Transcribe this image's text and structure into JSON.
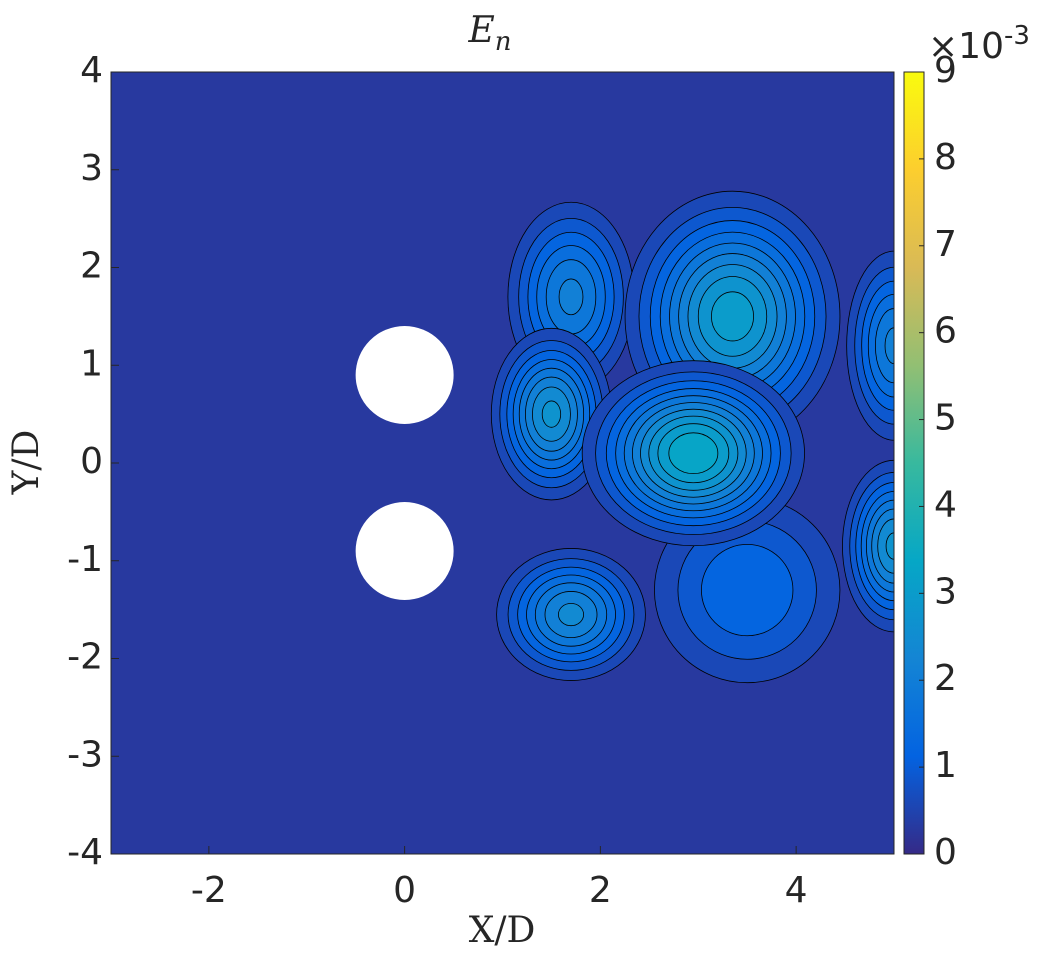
{
  "chart_data": {
    "type": "contour",
    "title": "E",
    "title_subscript": "n",
    "x_label": "X/D",
    "y_label": "Y/D",
    "xlim": [
      -3,
      5
    ],
    "xticks": [
      -2,
      0,
      2,
      4
    ],
    "ylim": [
      -4,
      4
    ],
    "yticks": [
      -4,
      -3,
      -2,
      -1,
      0,
      1,
      2,
      3,
      4
    ],
    "clim": [
      0,
      9
    ],
    "cticks": [
      0,
      1,
      2,
      3,
      4,
      5,
      6,
      7,
      8,
      9
    ],
    "colorbar_multiplier": "×10",
    "colorbar_exponent": "-3",
    "colormap": [
      "#352a87",
      "#0363e1",
      "#1485d4",
      "#06a7c6",
      "#38b99e",
      "#92bf73",
      "#d9ba56",
      "#fcce2e",
      "#f9fb0e"
    ],
    "background": 0.3,
    "level_step": 0.3,
    "peaks": [
      {
        "x": 3.5,
        "y": -1.3,
        "value": 1.5,
        "sx": 0.7,
        "sy": 0.7
      },
      {
        "x": 1.7,
        "y": 1.7,
        "value": 2.2,
        "sx": 0.4,
        "sy": 0.6
      },
      {
        "x": 3.35,
        "y": 1.5,
        "value": 3.2,
        "sx": 0.6,
        "sy": 0.7
      },
      {
        "x": 1.5,
        "y": 0.5,
        "value": 2.8,
        "sx": 0.35,
        "sy": 0.5
      },
      {
        "x": 2.95,
        "y": 0.1,
        "value": 3.6,
        "sx": 0.6,
        "sy": 0.5
      },
      {
        "x": 1.7,
        "y": -1.55,
        "value": 2.5,
        "sx": 0.45,
        "sy": 0.4
      },
      {
        "x": 5,
        "y": -0.85,
        "value": 2.8,
        "sx": 0.3,
        "sy": 0.5
      },
      {
        "x": 5,
        "y": 1.2,
        "value": 2.2,
        "sx": 0.3,
        "sy": 0.6
      }
    ]
  }
}
